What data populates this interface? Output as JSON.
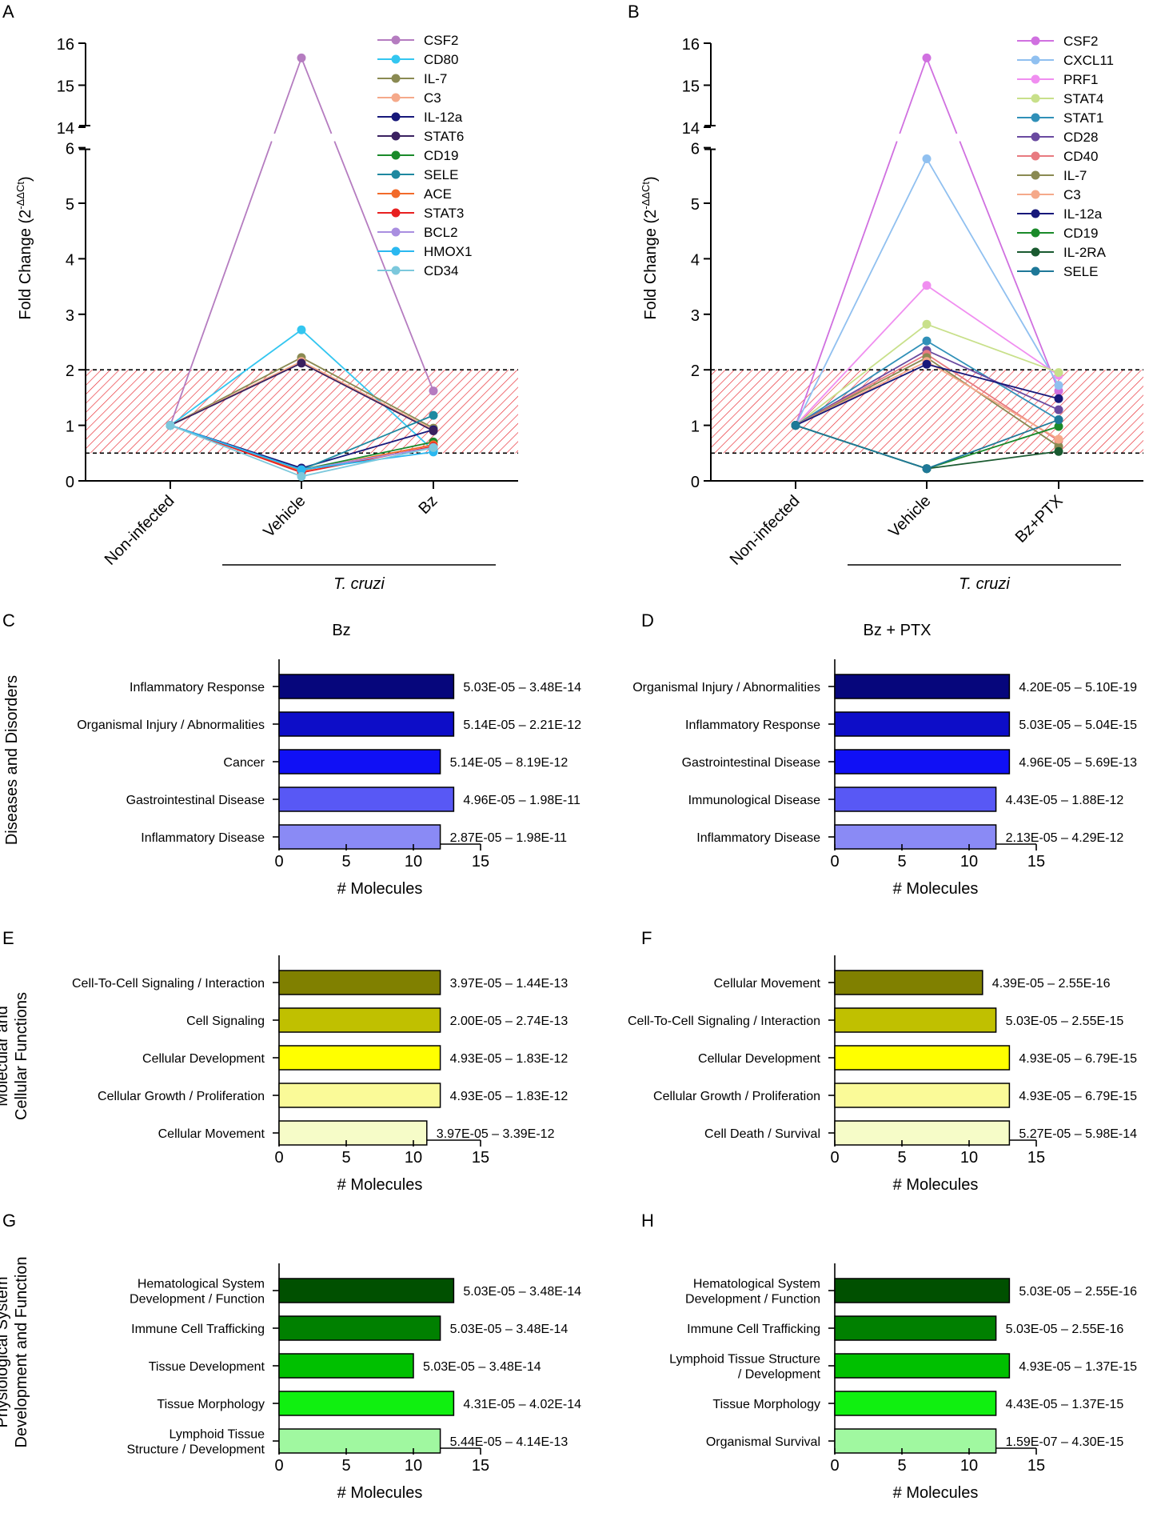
{
  "line_panels": [
    {
      "letter": "A",
      "ylabel": "Fold Change (2",
      "ylabel_sup": "-ΔΔCt",
      "ylabel_close": ")",
      "upper_ticks": [
        "16",
        "15",
        "14"
      ],
      "lower_ticks": [
        "6",
        "5",
        "4",
        "3",
        "2",
        "1",
        "0"
      ],
      "categories": [
        "Non-infected",
        "Vehicle",
        "Bz"
      ],
      "group_label": "T. cruzi"
    },
    {
      "letter": "B",
      "ylabel": "Fold Change (2",
      "ylabel_sup": "-ΔΔCt",
      "ylabel_close": ")",
      "upper_ticks": [
        "16",
        "15",
        "14"
      ],
      "lower_ticks": [
        "6",
        "5",
        "4",
        "3",
        "2",
        "1",
        "0"
      ],
      "categories": [
        "Non-infected",
        "Vehicle",
        "Bz+PTX"
      ],
      "group_label": "T. cruzi"
    }
  ],
  "bar_panels": [
    {
      "letter": "C",
      "title": "Bz"
    },
    {
      "letter": "D",
      "title": "Bz + PTX"
    },
    {
      "letter": "E",
      "title": ""
    },
    {
      "letter": "F",
      "title": ""
    },
    {
      "letter": "G",
      "title": ""
    },
    {
      "letter": "H",
      "title": ""
    }
  ],
  "row_labels": [
    [
      "Diseases and Disorders"
    ],
    [
      "Molecular and",
      "Cellular Functions"
    ],
    [
      "Physiological System",
      "Development and Function"
    ]
  ],
  "bar_xaxis": {
    "label": "# Molecules",
    "ticks": [
      "0",
      "5",
      "10",
      "15"
    ]
  },
  "chart_data": [
    {
      "panel": "A",
      "type": "line",
      "categories": [
        "Non-infected",
        "Vehicle",
        "Bz"
      ],
      "ylabel": "Fold Change (2^-ΔΔCt)",
      "ylim_lower": [
        0,
        6
      ],
      "ylim_upper": [
        14,
        16
      ],
      "threshold_band": [
        0.5,
        2
      ],
      "series": [
        {
          "name": "CSF2",
          "color": "#b57cc0",
          "values": [
            1,
            15.65,
            1.62
          ]
        },
        {
          "name": "CD80",
          "color": "#33c6f0",
          "values": [
            1,
            2.72,
            0.55
          ]
        },
        {
          "name": "IL-7",
          "color": "#8a8a52",
          "values": [
            1,
            2.22,
            0.95
          ]
        },
        {
          "name": "C3",
          "color": "#f5a98a",
          "values": [
            1,
            2.15,
            0.92
          ]
        },
        {
          "name": "IL-12a",
          "color": "#17187a",
          "values": [
            1,
            0.23,
            0.92
          ]
        },
        {
          "name": "STAT6",
          "color": "#3a2160",
          "values": [
            1,
            2.12,
            0.9
          ]
        },
        {
          "name": "CD19",
          "color": "#1a8a2a",
          "values": [
            1,
            0.2,
            0.7
          ]
        },
        {
          "name": "SELE",
          "color": "#1e88a0",
          "values": [
            1,
            0.2,
            1.18
          ]
        },
        {
          "name": "ACE",
          "color": "#f26a2a",
          "values": [
            1,
            0.18,
            0.65
          ]
        },
        {
          "name": "STAT3",
          "color": "#e82020",
          "values": [
            1,
            0.15,
            0.62
          ]
        },
        {
          "name": "BCL2",
          "color": "#a98ee0",
          "values": [
            1,
            0.2,
            0.6
          ]
        },
        {
          "name": "HMOX1",
          "color": "#2ab8f0",
          "values": [
            1,
            0.2,
            0.52
          ]
        },
        {
          "name": "CD34",
          "color": "#7cc8dc",
          "values": [
            1,
            0.08,
            0.6
          ]
        }
      ]
    },
    {
      "panel": "B",
      "type": "line",
      "categories": [
        "Non-infected",
        "Vehicle",
        "Bz+PTX"
      ],
      "ylabel": "Fold Change (2^-ΔΔCt)",
      "ylim_lower": [
        0,
        6
      ],
      "ylim_upper": [
        14,
        16
      ],
      "threshold_band": [
        0.5,
        2
      ],
      "series": [
        {
          "name": "CSF2",
          "color": "#d070e0",
          "values": [
            1,
            15.65,
            1.62
          ]
        },
        {
          "name": "CXCL11",
          "color": "#90c0f0",
          "values": [
            1,
            5.8,
            1.72
          ]
        },
        {
          "name": "PRF1",
          "color": "#f08ef0",
          "values": [
            1,
            3.52,
            1.9
          ]
        },
        {
          "name": "STAT4",
          "color": "#c8e08a",
          "values": [
            1,
            2.82,
            1.95
          ]
        },
        {
          "name": "STAT1",
          "color": "#3090b8",
          "values": [
            1,
            2.52,
            1.1
          ]
        },
        {
          "name": "CD28",
          "color": "#6a4aa0",
          "values": [
            1,
            2.35,
            1.28
          ]
        },
        {
          "name": "CD40",
          "color": "#e87a80",
          "values": [
            1,
            2.28,
            0.72
          ]
        },
        {
          "name": "IL-7",
          "color": "#8a8a52",
          "values": [
            1,
            2.22,
            0.62
          ]
        },
        {
          "name": "C3",
          "color": "#f5a98a",
          "values": [
            1,
            2.15,
            0.75
          ]
        },
        {
          "name": "IL-12a",
          "color": "#17187a",
          "values": [
            1,
            2.1,
            1.48
          ]
        },
        {
          "name": "CD19",
          "color": "#1a8a2a",
          "values": [
            1,
            0.22,
            0.98
          ]
        },
        {
          "name": "IL-2RA",
          "color": "#1a5a30",
          "values": [
            1,
            0.22,
            0.53
          ]
        },
        {
          "name": "SELE",
          "color": "#1e7898",
          "values": [
            1,
            0.22,
            1.1
          ]
        }
      ]
    },
    {
      "panel": "C",
      "type": "bar",
      "orientation": "horizontal",
      "title": "Bz",
      "xlabel": "# Molecules",
      "xlim": [
        0,
        15
      ],
      "categories": [
        [
          "Inflammatory Response"
        ],
        [
          "Organismal Injury / Abnormalities"
        ],
        [
          "Cancer"
        ],
        [
          "Gastrointestinal Disease"
        ],
        [
          "Inflammatory Disease"
        ]
      ],
      "values": [
        13,
        13,
        12,
        13,
        12
      ],
      "annotations": [
        "5.03E-05 – 3.48E-14",
        "5.14E-05 – 2.21E-12",
        "5.14E-05 – 8.19E-12",
        "4.96E-05 – 1.98E-11",
        "2.87E-05 – 1.98E-11"
      ],
      "colors": [
        "#06067c",
        "#0d0dc8",
        "#1010f5",
        "#5858f5",
        "#8a8af5"
      ]
    },
    {
      "panel": "D",
      "type": "bar",
      "orientation": "horizontal",
      "title": "Bz + PTX",
      "xlabel": "# Molecules",
      "xlim": [
        0,
        15
      ],
      "categories": [
        [
          "Organismal Injury / Abnormalities"
        ],
        [
          "Inflammatory Response"
        ],
        [
          "Gastrointestinal Disease"
        ],
        [
          "Immunological Disease"
        ],
        [
          "Inflammatory Disease"
        ]
      ],
      "values": [
        13,
        13,
        13,
        12,
        12
      ],
      "annotations": [
        "4.20E-05 – 5.10E-19",
        "5.03E-05 – 5.04E-15",
        "4.96E-05 – 5.69E-13",
        "4.43E-05 – 1.88E-12",
        "2.13E-05 – 4.29E-12"
      ],
      "colors": [
        "#06067c",
        "#0d0dc8",
        "#1010f5",
        "#5858f5",
        "#8a8af5"
      ]
    },
    {
      "panel": "E",
      "type": "bar",
      "orientation": "horizontal",
      "xlabel": "# Molecules",
      "xlim": [
        0,
        15
      ],
      "categories": [
        [
          "Cell-To-Cell Signaling / Interaction"
        ],
        [
          "Cell Signaling"
        ],
        [
          "Cellular Development"
        ],
        [
          "Cellular Growth / Proliferation"
        ],
        [
          "Cellular Movement"
        ]
      ],
      "values": [
        12,
        12,
        12,
        12,
        11
      ],
      "annotations": [
        "3.97E-05 – 1.44E-13",
        "2.00E-05 – 2.74E-13",
        "4.93E-05 – 1.83E-12",
        "4.93E-05 – 1.83E-12",
        "3.97E-05 – 3.39E-12"
      ],
      "colors": [
        "#808000",
        "#c0c000",
        "#ffff00",
        "#fafa98",
        "#f6fcc8"
      ]
    },
    {
      "panel": "F",
      "type": "bar",
      "orientation": "horizontal",
      "xlabel": "# Molecules",
      "xlim": [
        0,
        15
      ],
      "categories": [
        [
          "Cellular Movement"
        ],
        [
          "Cell-To-Cell Signaling / Interaction"
        ],
        [
          "Cellular Development"
        ],
        [
          "Cellular Growth / Proliferation"
        ],
        [
          "Cell Death / Survival"
        ]
      ],
      "values": [
        11,
        12,
        13,
        13,
        13
      ],
      "annotations": [
        "4.39E-05 – 2.55E-16",
        "5.03E-05 – 2.55E-15",
        "4.93E-05 – 6.79E-15",
        "4.93E-05 – 6.79E-15",
        "5.27E-05 – 5.98E-14"
      ],
      "colors": [
        "#808000",
        "#c0c000",
        "#ffff00",
        "#fafa98",
        "#f6fcc8"
      ]
    },
    {
      "panel": "G",
      "type": "bar",
      "orientation": "horizontal",
      "xlabel": "# Molecules",
      "xlim": [
        0,
        15
      ],
      "categories": [
        [
          "Hematological System",
          "Development / Function"
        ],
        [
          "Immune Cell Trafficking"
        ],
        [
          "Tissue Development"
        ],
        [
          "Tissue Morphology"
        ],
        [
          "Lymphoid Tissue",
          "Structure / Development"
        ]
      ],
      "values": [
        13,
        12,
        10,
        13,
        12
      ],
      "annotations": [
        "5.03E-05 – 3.48E-14",
        "5.03E-05 – 3.48E-14",
        "5.03E-05 – 3.48E-14",
        "4.31E-05 – 4.02E-14",
        "5.44E-05 – 4.14E-13"
      ],
      "colors": [
        "#005000",
        "#008000",
        "#00c000",
        "#10f010",
        "#a0f8a0"
      ]
    },
    {
      "panel": "H",
      "type": "bar",
      "orientation": "horizontal",
      "xlabel": "# Molecules",
      "xlim": [
        0,
        15
      ],
      "categories": [
        [
          "Hematological System",
          "Development / Function"
        ],
        [
          "Immune Cell Trafficking"
        ],
        [
          "Lymphoid Tissue Structure",
          "/ Development"
        ],
        [
          "Tissue Morphology"
        ],
        [
          "Organismal Survival"
        ]
      ],
      "values": [
        13,
        12,
        13,
        12,
        12
      ],
      "annotations": [
        "5.03E-05 – 2.55E-16",
        "5.03E-05 – 2.55E-16",
        "4.93E-05 – 1.37E-15",
        "4.43E-05 – 1.37E-15",
        "1.59E-07 – 4.30E-15"
      ],
      "colors": [
        "#005000",
        "#008000",
        "#00c000",
        "#10f010",
        "#a0f8a0"
      ]
    }
  ]
}
